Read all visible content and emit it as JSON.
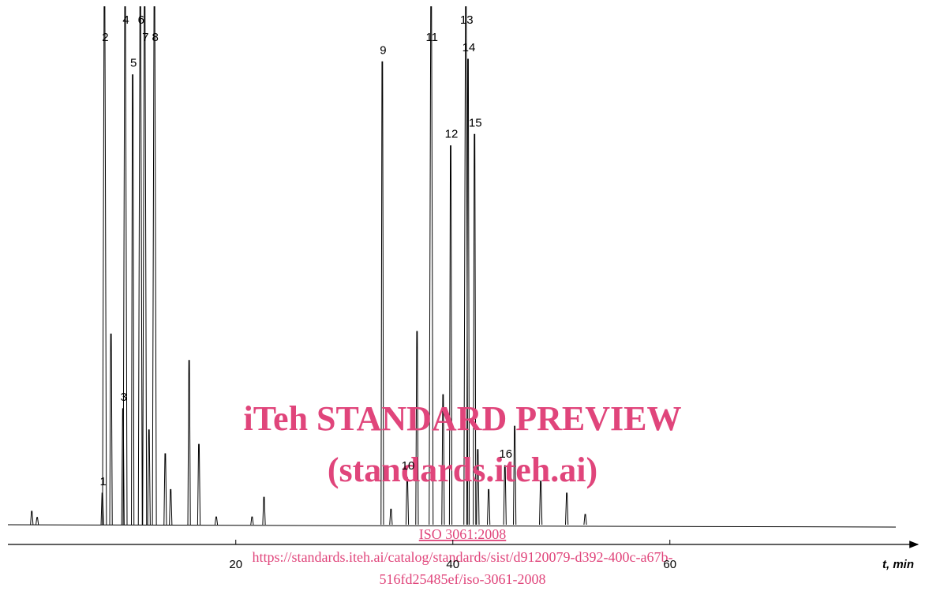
{
  "chart_data": {
    "type": "spike",
    "x_label": "t, min",
    "xlim": [
      -1,
      83
    ],
    "xticks": [
      20,
      40,
      60
    ],
    "color": "#000000",
    "x": [
      1.2,
      1.7,
      7.7,
      7.9,
      8.5,
      9.6,
      9.8,
      10.5,
      11.2,
      11.6,
      12.0,
      12.5,
      13.5,
      14.0,
      15.7,
      16.6,
      18.2,
      21.5,
      22.6,
      33.5,
      34.3,
      35.8,
      36.7,
      38.0,
      39.1,
      39.8,
      41.2,
      41.4,
      42.0,
      42.3,
      43.3,
      44.8,
      45.7,
      48.1,
      50.5,
      52.2
    ],
    "values": [
      2.6,
      1.4,
      6.1,
      105,
      36.8,
      22.4,
      105,
      86.8,
      105,
      105,
      18.3,
      105,
      13.7,
      6.8,
      31.7,
      15.5,
      1.5,
      1.5,
      5.3,
      89.3,
      3,
      9.1,
      37.3,
      105,
      25.1,
      73.1,
      105,
      89.8,
      75.3,
      14.5,
      6.8,
      11.4,
      19,
      8.4,
      6.1,
      2
    ],
    "labels": [
      null,
      null,
      "1",
      "2",
      null,
      "3",
      "4",
      "5",
      "6",
      "7",
      null,
      "8",
      null,
      null,
      null,
      null,
      null,
      null,
      null,
      "9",
      null,
      "10",
      null,
      "11",
      null,
      "12",
      "13",
      "14",
      "15",
      null,
      null,
      "16",
      null,
      null,
      null,
      null
    ]
  },
  "watermark": {
    "title": "iTeh STANDARD PREVIEW",
    "subtitle": "(standards.iteh.ai)",
    "standard": "ISO 3061:2008",
    "url_line1": "https://standards.iteh.ai/catalog/standards/sist/d9120079-d392-400c-a67b-",
    "url_line2": "516fd25485ef/iso-3061-2008"
  }
}
